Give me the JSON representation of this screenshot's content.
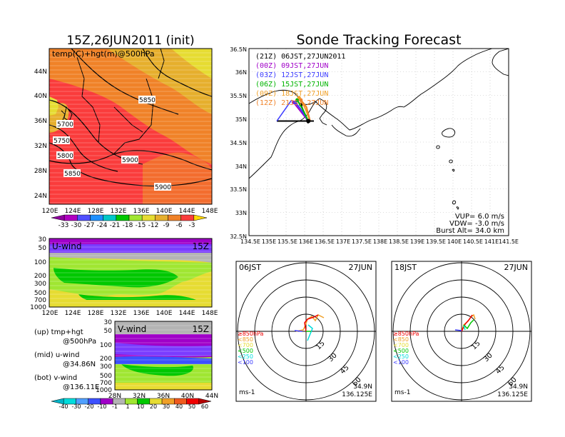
{
  "left_title": "15Z,26JUN2011 (init)",
  "right_title": "Sonde Tracking Forecast",
  "panel_top": {
    "label": "temp(C)+hgt(m)@500hPa",
    "y_ticks": [
      "44N",
      "40N",
      "36N",
      "32N",
      "28N",
      "24N"
    ],
    "x_ticks": [
      "120E",
      "124E",
      "128E",
      "132E",
      "136E",
      "140E",
      "144E",
      "148E"
    ],
    "contour_labels": [
      "5700",
      "5750",
      "5800",
      "5850",
      "5850",
      "5900",
      "5900"
    ],
    "colorbar_ticks": [
      "-33",
      "-30",
      "-27",
      "-24",
      "-21",
      "-18",
      "-15",
      "-12",
      "-9",
      "-6",
      "-3"
    ],
    "colorbar_colors": [
      "#9000a0",
      "#b000c0",
      "#5050ff",
      "#1e90ff",
      "#00c8c8",
      "#00c800",
      "#a0e632",
      "#e6dc32",
      "#e6af2d",
      "#f08228",
      "#fa3c3c",
      "#ffd700"
    ]
  },
  "panel_uwind": {
    "label": "U-wind",
    "time": "15Z",
    "y_ticks": [
      "30",
      "50",
      "100",
      "200",
      "300",
      "500",
      "700",
      "1000"
    ],
    "x_ticks": [
      "120E",
      "124E",
      "128E",
      "132E",
      "136E",
      "140E",
      "144E",
      "148E"
    ]
  },
  "panel_vwind": {
    "label": "V-wind",
    "time": "15Z",
    "y_ticks": [
      "30",
      "50",
      "100",
      "200",
      "300",
      "500",
      "700",
      "1000"
    ],
    "x_ticks": [
      "28N",
      "32N",
      "36N",
      "40N",
      "44N"
    ]
  },
  "legend_text": {
    "up1": "(up) tmp+hgt",
    "up2": "@500hPa",
    "mid1": "(mid) u-wind",
    "mid2": "@34.86N",
    "bot1": "(bot) v-wind",
    "bot2": "@136.11E"
  },
  "wind_colorbar": {
    "ticks": [
      "-40",
      "-30",
      "-20",
      "-10",
      "-1",
      "1",
      "10",
      "20",
      "30",
      "40",
      "50",
      "60"
    ],
    "colors": [
      "#00b4c8",
      "#00dcdc",
      "#50a0ff",
      "#3c50ff",
      "#a000c8",
      "#b4b4b4",
      "#a0e632",
      "#00c800",
      "#e6dc32",
      "#f0a028",
      "#f05a1e",
      "#f00000",
      "#b40000"
    ]
  },
  "tracking_map": {
    "y_ticks": [
      "36.5N",
      "36N",
      "35.5N",
      "35N",
      "34.5N",
      "34N",
      "33.5N",
      "33N",
      "32.5N"
    ],
    "x_ticks": [
      "134.5E",
      "135E",
      "135.5E",
      "136E",
      "136.5E",
      "137E",
      "137.5E",
      "138E",
      "138.5E",
      "139E",
      "139.5E",
      "140E",
      "140.5E",
      "141E",
      "141.5E"
    ],
    "legend": [
      {
        "text": "(21Z)  06JST,27JUN2011",
        "color": "#000000"
      },
      {
        "text": "(00Z)  09JST,27JUN",
        "color": "#a000c8"
      },
      {
        "text": "(03Z)  12JST,27JUN",
        "color": "#3c3cff"
      },
      {
        "text": "(06Z)  15JST,27JUN",
        "color": "#00b400"
      },
      {
        "text": "(09Z)  18JST,27JUN",
        "color": "#f0a028"
      },
      {
        "text": "(12Z)  21JST,27JUN",
        "color": "#f08228"
      }
    ],
    "vup": "VUP=  6.0  m/s",
    "vdw": "VDW=  -3.0  m/s",
    "burst": "Burst Alt=  34.0  km"
  },
  "hodographs": [
    {
      "time": "06JST",
      "date": "27JUN",
      "levels": [
        "≥850hPa",
        "<850",
        "<700",
        "<500",
        "<250",
        "<100"
      ],
      "level_colors": [
        "#f00000",
        "#f0a028",
        "#e6dc32",
        "#00c800",
        "#00dcdc",
        "#3c3cff"
      ],
      "rings": [
        "15",
        "30",
        "45",
        "60"
      ],
      "unit": "ms-1",
      "lat": "34.9N",
      "lon": "136.125E"
    },
    {
      "time": "18JST",
      "date": "27JUN",
      "levels": [
        "≥850hPa",
        "<850",
        "<700",
        "<500",
        "<250",
        "<100"
      ],
      "level_colors": [
        "#f00000",
        "#f0a028",
        "#e6dc32",
        "#00c800",
        "#00dcdc",
        "#3c3cff"
      ],
      "rings": [
        "15",
        "30",
        "45",
        "60"
      ],
      "unit": "ms-1",
      "lat": "34.9N",
      "lon": "136.125E"
    }
  ],
  "chart_data": [
    {
      "type": "heatmap",
      "title": "15Z,26JUN2011 (init)",
      "subtitle": "temp(C)+hgt(m)@500hPa",
      "x_ticks": [
        "120E",
        "124E",
        "128E",
        "132E",
        "136E",
        "140E",
        "144E",
        "148E"
      ],
      "y_ticks": [
        "44N",
        "40N",
        "36N",
        "32N",
        "28N",
        "24N"
      ],
      "contour_values": [
        5700,
        5750,
        5800,
        5850,
        5900
      ],
      "colorbar_range": [
        -33,
        -3
      ]
    },
    {
      "type": "heatmap",
      "title": "U-wind",
      "x_range": [
        120,
        148
      ],
      "y_levels_hPa": [
        30,
        50,
        100,
        200,
        300,
        500,
        700,
        1000
      ]
    },
    {
      "type": "heatmap",
      "title": "V-wind",
      "x_range": [
        28,
        44
      ],
      "y_levels_hPa": [
        30,
        50,
        100,
        200,
        300,
        500,
        700,
        1000
      ]
    },
    {
      "type": "line",
      "title": "Sonde Tracking Forecast",
      "x_range": [
        134.5,
        141.5
      ],
      "y_range": [
        32.5,
        36.5
      ],
      "series": [
        {
          "name": "(21Z) 06JST,27JUN2011",
          "x": [
            136.1,
            136.0,
            135.9
          ],
          "y": [
            34.9,
            35.1,
            35.3
          ]
        },
        {
          "name": "(00Z) 09JST,27JUN",
          "x": [
            136.1,
            135.85,
            135.7
          ],
          "y": [
            34.95,
            35.2,
            35.35
          ]
        },
        {
          "name": "(03Z) 12JST,27JUN",
          "x": [
            136.1,
            135.9,
            135.75
          ],
          "y": [
            34.95,
            35.2,
            35.35
          ]
        },
        {
          "name": "(06Z) 15JST,27JUN",
          "x": [
            136.1,
            135.95,
            135.8
          ],
          "y": [
            34.95,
            35.2,
            35.4
          ]
        },
        {
          "name": "(09Z) 18JST,27JUN",
          "x": [
            136.15,
            136.0,
            135.85
          ],
          "y": [
            34.95,
            35.25,
            35.45
          ]
        },
        {
          "name": "(12Z) 21JST,27JUN",
          "x": [
            136.15,
            136.05,
            135.9
          ],
          "y": [
            34.95,
            35.25,
            35.4
          ]
        }
      ]
    }
  ]
}
